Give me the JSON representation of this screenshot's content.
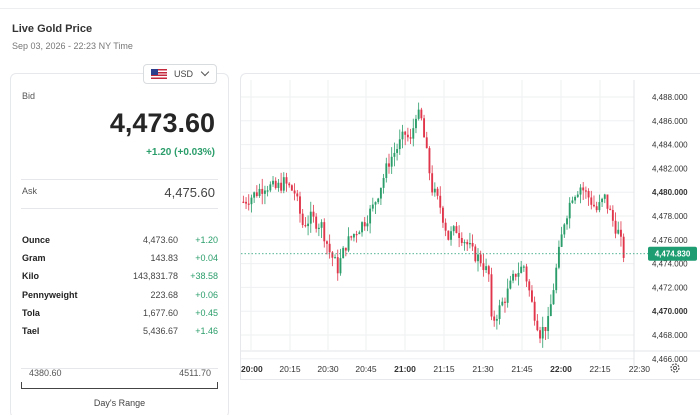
{
  "header": {
    "title": "Live Gold Price",
    "timestamp": "Sep 03, 2026 - 22:23 NY Time"
  },
  "currency_selector": {
    "value": "USD",
    "icon": "us-flag-icon"
  },
  "quote": {
    "bid_label": "Bid",
    "bid": "4,473.60",
    "change": "+1.20 (+0.03%)",
    "ask_label": "Ask",
    "ask": "4,475.60"
  },
  "units": [
    {
      "name": "Ounce",
      "price": "4,473.60",
      "change": "+1.20"
    },
    {
      "name": "Gram",
      "price": "143.83",
      "change": "+0.04"
    },
    {
      "name": "Kilo",
      "price": "143,831.78",
      "change": "+38.58"
    },
    {
      "name": "Pennyweight",
      "price": "223.68",
      "change": "+0.06"
    },
    {
      "name": "Tola",
      "price": "1,677.60",
      "change": "+0.45"
    },
    {
      "name": "Tael",
      "price": "5,436.67",
      "change": "+1.46"
    }
  ],
  "days_range": {
    "low": "4380.60",
    "high": "4511.70",
    "caption": "Day's Range"
  },
  "colors": {
    "up": "#2a9d6a",
    "down": "#e0354a",
    "accent": "#1e9c72"
  },
  "chart_data": {
    "type": "candlestick",
    "ylim": [
      4465.5,
      4489.0
    ],
    "y_ticks": [
      "4,488.000",
      "4,486.000",
      "4,484.000",
      "4,482.000",
      "4,480.000",
      "4,478.000",
      "4,476.000",
      "4,474.000",
      "4,472.000",
      "4,470.000",
      "4,468.000",
      "4,466.000"
    ],
    "y_bold_ticks": [
      "4,480.000",
      "4,470.000"
    ],
    "x_ticks": [
      "20:00",
      "20:15",
      "20:30",
      "20:45",
      "21:00",
      "21:15",
      "21:30",
      "21:45",
      "22:00",
      "22:15",
      "22:30"
    ],
    "x_bold_ticks": [
      "20:00",
      "21:00",
      "22:00"
    ],
    "current_price": "4,474.830",
    "current_value": 4474.83,
    "settings_icon": "settings-gear-icon",
    "keypoints": [
      [
        0,
        4479.2
      ],
      [
        4,
        4479.8
      ],
      [
        8,
        4480.6
      ],
      [
        12,
        4480.3
      ],
      [
        15,
        4480.8
      ],
      [
        19,
        4480.0
      ],
      [
        22,
        4477.3
      ],
      [
        25,
        4477.8
      ],
      [
        29,
        4477.2
      ],
      [
        32,
        4475.0
      ],
      [
        35,
        4473.6
      ],
      [
        38,
        4475.6
      ],
      [
        42,
        4476.8
      ],
      [
        45,
        4477.6
      ],
      [
        48,
        4478.7
      ],
      [
        51,
        4480.6
      ],
      [
        54,
        4482.6
      ],
      [
        58,
        4484.1
      ],
      [
        60,
        4484.9
      ],
      [
        62,
        4484.2
      ],
      [
        64,
        4486.7
      ],
      [
        66,
        4486.0
      ],
      [
        70,
        4480.3
      ],
      [
        73,
        4478.8
      ],
      [
        76,
        4476.2
      ],
      [
        79,
        4476.9
      ],
      [
        82,
        4476.0
      ],
      [
        85,
        4474.9
      ],
      [
        88,
        4474.3
      ],
      [
        91,
        4473.0
      ],
      [
        92,
        4469.0
      ],
      [
        95,
        4470.2
      ],
      [
        98,
        4471.6
      ],
      [
        101,
        4473.2
      ],
      [
        104,
        4473.8
      ],
      [
        107,
        4470.6
      ],
      [
        110,
        4468.2
      ],
      [
        113,
        4469.0
      ],
      [
        116,
        4473.5
      ],
      [
        119,
        4477.6
      ],
      [
        122,
        4479.8
      ],
      [
        125,
        4480.5
      ],
      [
        128,
        4479.6
      ],
      [
        131,
        4478.5
      ],
      [
        134,
        4479.5
      ],
      [
        137,
        4477.6
      ],
      [
        139,
        4476.6
      ],
      [
        141,
        4474.8
      ]
    ]
  }
}
